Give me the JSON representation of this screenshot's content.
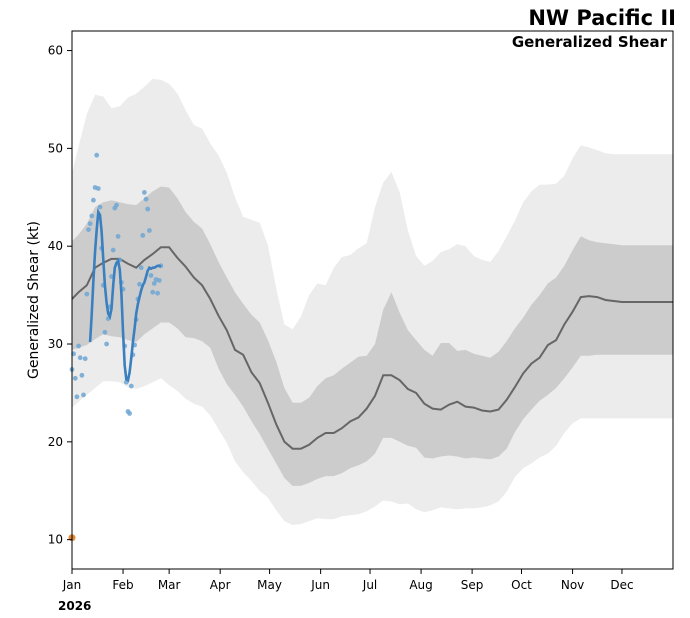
{
  "chart_data": {
    "type": "line",
    "title": "NW Pacific II",
    "subtitle": "Generalized Shear",
    "ylabel": "Generalized Shear (kt)",
    "xlabel": "",
    "year_label": "2026",
    "ylim": [
      7,
      62
    ],
    "xlim": [
      1,
      366
    ],
    "yticks": [
      10,
      20,
      30,
      40,
      50,
      60
    ],
    "xticks": [
      {
        "day": 1,
        "label": "Jan"
      },
      {
        "day": 32,
        "label": "Feb"
      },
      {
        "day": 60,
        "label": "Mar"
      },
      {
        "day": 91,
        "label": "Apr"
      },
      {
        "day": 121,
        "label": "May"
      },
      {
        "day": 152,
        "label": "Jun"
      },
      {
        "day": 182,
        "label": "Jul"
      },
      {
        "day": 213,
        "label": "Aug"
      },
      {
        "day": 244,
        "label": "Sep"
      },
      {
        "day": 274,
        "label": "Oct"
      },
      {
        "day": 305,
        "label": "Nov"
      },
      {
        "day": 335,
        "label": "Dec"
      }
    ],
    "colors": {
      "outer_band": "#ececec",
      "inner_band": "#cccccc",
      "climatology": "#666666",
      "current_line": "#3a7fbf",
      "current_points": "#6fa6d4",
      "marker": "#e08a3c"
    },
    "series": [
      {
        "name": "climatology mean",
        "x": [
          1,
          5,
          10,
          15,
          20,
          25,
          30,
          35,
          40,
          45,
          50,
          55,
          60,
          65,
          70,
          75,
          80,
          85,
          90,
          95,
          100,
          105,
          110,
          115,
          120,
          125,
          130,
          135,
          140,
          145,
          150,
          155,
          160,
          165,
          170,
          175,
          180,
          185,
          190,
          195,
          200,
          205,
          210,
          215,
          220,
          225,
          230,
          235,
          240,
          245,
          250,
          255,
          260,
          265,
          270,
          275,
          280,
          285,
          290,
          295,
          300,
          305,
          310,
          315,
          320,
          325,
          330,
          335,
          340,
          345,
          350,
          355,
          360,
          366
        ],
        "y": [
          34.6,
          35.3,
          36.0,
          37.8,
          38.3,
          38.7,
          38.7,
          38.2,
          37.8,
          38.6,
          39.2,
          39.9,
          39.9,
          38.8,
          37.9,
          36.8,
          36.0,
          34.6,
          32.9,
          31.4,
          29.4,
          28.9,
          27.1,
          26.0,
          24.0,
          21.8,
          20.0,
          19.3,
          19.3,
          19.7,
          20.4,
          20.9,
          20.9,
          21.4,
          22.1,
          22.5,
          23.4,
          24.7,
          26.8,
          26.8,
          26.3,
          25.4,
          25.0,
          23.9,
          23.4,
          23.3,
          23.8,
          24.1,
          23.6,
          23.5,
          23.2,
          23.1,
          23.3,
          24.3,
          25.6,
          27.0,
          28.0,
          28.6,
          29.9,
          30.4,
          32.0,
          33.3,
          34.8,
          34.9,
          34.8,
          34.5,
          34.4,
          34.3,
          34.3,
          34.3,
          34.3,
          34.3,
          34.3,
          34.3
        ]
      },
      {
        "name": "inner band (upper)",
        "x": [
          1,
          5,
          10,
          15,
          20,
          25,
          30,
          35,
          40,
          45,
          50,
          55,
          60,
          65,
          70,
          75,
          80,
          85,
          90,
          95,
          100,
          105,
          110,
          115,
          120,
          125,
          130,
          135,
          140,
          145,
          150,
          155,
          160,
          165,
          170,
          175,
          180,
          185,
          190,
          195,
          200,
          205,
          210,
          215,
          220,
          225,
          230,
          235,
          240,
          245,
          250,
          255,
          260,
          265,
          270,
          275,
          280,
          285,
          290,
          295,
          300,
          305,
          310,
          315,
          320,
          325,
          330,
          335,
          340,
          345,
          350,
          355,
          360,
          366
        ],
        "y": [
          40.5,
          41.2,
          42.3,
          44.0,
          44.5,
          44.7,
          44.5,
          44.3,
          44.2,
          44.9,
          45.6,
          46.1,
          46.0,
          44.9,
          43.5,
          42.5,
          41.8,
          40.2,
          38.4,
          36.8,
          35.3,
          34.1,
          33.0,
          32.2,
          30.4,
          28.2,
          25.5,
          24.0,
          24.0,
          24.5,
          25.7,
          26.5,
          26.8,
          27.5,
          28.1,
          28.7,
          28.8,
          30.0,
          33.5,
          35.3,
          33.2,
          31.4,
          30.4,
          29.4,
          28.8,
          30.1,
          30.1,
          29.3,
          29.4,
          29.0,
          28.8,
          28.6,
          29.2,
          30.3,
          31.6,
          32.7,
          34.0,
          35.0,
          36.2,
          36.8,
          38.0,
          39.6,
          41.0,
          40.6,
          40.4,
          40.3,
          40.2,
          40.1,
          40.1,
          40.1,
          40.1,
          40.1,
          40.1,
          40.1
        ]
      },
      {
        "name": "inner band (lower)",
        "x": [
          1,
          5,
          10,
          15,
          20,
          25,
          30,
          35,
          40,
          45,
          50,
          55,
          60,
          65,
          70,
          75,
          80,
          85,
          90,
          95,
          100,
          105,
          110,
          115,
          120,
          125,
          130,
          135,
          140,
          145,
          150,
          155,
          160,
          165,
          170,
          175,
          180,
          185,
          190,
          195,
          200,
          205,
          210,
          215,
          220,
          225,
          230,
          235,
          240,
          245,
          250,
          255,
          260,
          265,
          270,
          275,
          280,
          285,
          290,
          295,
          300,
          305,
          310,
          315,
          320,
          325,
          330,
          335,
          340,
          345,
          350,
          355,
          360,
          366
        ],
        "y": [
          29.4,
          29.6,
          29.9,
          30.5,
          31.0,
          30.8,
          30.7,
          30.4,
          30.2,
          31.0,
          31.6,
          32.2,
          32.2,
          31.6,
          30.7,
          30.6,
          30.3,
          29.6,
          27.5,
          25.9,
          24.8,
          23.6,
          22.1,
          20.8,
          19.3,
          17.8,
          16.3,
          15.5,
          15.5,
          15.8,
          16.2,
          16.5,
          16.5,
          16.8,
          17.3,
          17.6,
          18.0,
          18.8,
          20.4,
          20.4,
          20.0,
          19.6,
          19.4,
          18.4,
          18.3,
          18.5,
          18.6,
          18.5,
          18.3,
          18.4,
          18.3,
          18.2,
          18.5,
          19.3,
          21.0,
          22.3,
          23.3,
          24.2,
          24.8,
          25.5,
          26.5,
          27.6,
          28.8,
          28.8,
          28.9,
          28.9,
          28.9,
          28.9,
          28.9,
          28.9,
          28.9,
          28.9,
          28.9,
          28.9
        ]
      },
      {
        "name": "outer band (upper)",
        "x": [
          1,
          5,
          10,
          15,
          20,
          25,
          30,
          35,
          40,
          45,
          50,
          55,
          60,
          65,
          70,
          75,
          80,
          85,
          90,
          95,
          100,
          105,
          110,
          115,
          120,
          125,
          130,
          135,
          140,
          145,
          150,
          155,
          160,
          165,
          170,
          175,
          180,
          185,
          190,
          195,
          200,
          205,
          210,
          215,
          220,
          225,
          230,
          235,
          240,
          245,
          250,
          255,
          260,
          265,
          270,
          275,
          280,
          285,
          290,
          295,
          300,
          305,
          310,
          315,
          320,
          325,
          330,
          335,
          340,
          345,
          350,
          355,
          360,
          366
        ],
        "y": [
          47.5,
          50.2,
          53.5,
          55.5,
          55.3,
          54.1,
          54.3,
          55.2,
          55.6,
          56.3,
          57.1,
          57.0,
          56.6,
          55.6,
          53.9,
          52.4,
          52.0,
          50.5,
          49.3,
          47.5,
          45.0,
          43.0,
          42.7,
          42.4,
          40.1,
          35.7,
          32.0,
          31.5,
          32.8,
          35.0,
          36.2,
          36.0,
          37.8,
          38.9,
          39.1,
          39.8,
          40.3,
          44.0,
          46.5,
          47.6,
          45.5,
          41.6,
          39.0,
          38.0,
          38.5,
          39.4,
          39.7,
          40.2,
          40.0,
          39.0,
          38.6,
          38.4,
          39.5,
          41.0,
          42.6,
          44.5,
          45.6,
          46.3,
          46.3,
          46.4,
          47.2,
          49.0,
          50.3,
          50.1,
          49.8,
          49.5,
          49.4,
          49.4,
          49.4,
          49.4,
          49.4,
          49.4,
          49.4,
          49.4
        ]
      },
      {
        "name": "outer band (lower)",
        "x": [
          1,
          5,
          10,
          15,
          20,
          25,
          30,
          35,
          40,
          45,
          50,
          55,
          60,
          65,
          70,
          75,
          80,
          85,
          90,
          95,
          100,
          105,
          110,
          115,
          120,
          125,
          130,
          135,
          140,
          145,
          150,
          155,
          160,
          165,
          170,
          175,
          180,
          185,
          190,
          195,
          200,
          205,
          210,
          215,
          220,
          225,
          230,
          235,
          240,
          245,
          250,
          255,
          260,
          265,
          270,
          275,
          280,
          285,
          290,
          295,
          300,
          305,
          310,
          315,
          320,
          325,
          330,
          335,
          340,
          345,
          350,
          355,
          360,
          366
        ],
        "y": [
          23.5,
          24.1,
          24.8,
          25.5,
          26.2,
          26.2,
          26.1,
          25.6,
          25.4,
          25.7,
          26.1,
          26.5,
          25.8,
          25.2,
          24.4,
          23.9,
          23.6,
          22.7,
          21.3,
          19.9,
          18.0,
          16.9,
          16.0,
          15.0,
          14.3,
          13.0,
          11.9,
          11.5,
          11.6,
          11.9,
          12.2,
          12.1,
          12.1,
          12.4,
          12.5,
          12.6,
          12.9,
          13.4,
          14.0,
          13.9,
          13.6,
          13.7,
          13.1,
          12.8,
          13.0,
          13.3,
          13.2,
          13.1,
          13.2,
          13.2,
          13.3,
          13.5,
          13.9,
          14.9,
          16.4,
          17.3,
          17.8,
          18.4,
          18.8,
          19.6,
          20.9,
          21.9,
          22.4,
          22.4,
          22.4,
          22.4,
          22.4,
          22.4,
          22.4,
          22.4,
          22.4,
          22.4,
          22.4,
          22.4
        ]
      },
      {
        "name": "2026 (smoothed)",
        "x": [
          12,
          13,
          14,
          15,
          16,
          17,
          18,
          19,
          20,
          21,
          22,
          23,
          24,
          25,
          26,
          27,
          28,
          29,
          30,
          31,
          32,
          33,
          34,
          35,
          36,
          37,
          38,
          39,
          40,
          41,
          42,
          43,
          44,
          45,
          46,
          47,
          48,
          49,
          50,
          51,
          52,
          53,
          54,
          55
        ],
        "y": [
          30.2,
          33.2,
          36.5,
          39.5,
          41.7,
          43.5,
          43.2,
          41.5,
          38.6,
          36.0,
          34.2,
          33.1,
          32.8,
          33.6,
          36.0,
          37.8,
          38.3,
          38.5,
          37.6,
          35.2,
          31.3,
          27.8,
          26.4,
          26.3,
          27.1,
          28.6,
          30.2,
          31.6,
          33.1,
          34.1,
          34.8,
          35.5,
          36.0,
          36.3,
          36.9,
          37.5,
          37.8,
          37.7,
          37.8,
          37.8,
          37.9,
          38.0,
          38.0,
          37.9
        ]
      },
      {
        "name": "2026 (daily points)",
        "x": [
          1,
          2,
          3,
          4,
          5,
          6,
          7,
          8,
          9,
          10,
          11,
          12,
          13,
          14,
          15,
          16,
          17,
          18,
          19,
          20,
          21,
          22,
          23,
          24,
          25,
          26,
          27,
          28,
          29,
          30,
          31,
          32,
          33,
          34,
          35,
          36,
          37,
          38,
          39,
          40,
          41,
          42,
          43,
          44,
          45,
          46,
          47,
          48,
          49,
          50,
          51,
          52,
          53,
          54,
          55
        ],
        "y": [
          27.4,
          29.0,
          26.5,
          24.6,
          29.8,
          28.6,
          26.8,
          24.8,
          28.5,
          35.1,
          41.7,
          42.3,
          43.1,
          44.7,
          46.0,
          49.3,
          45.9,
          44.0,
          39.8,
          36.0,
          31.2,
          30.0,
          32.6,
          33.8,
          36.9,
          39.6,
          43.9,
          44.2,
          41.0,
          38.6,
          36.3,
          35.6,
          29.8,
          26.1,
          23.1,
          22.9,
          25.7,
          28.9,
          29.9,
          32.5,
          34.6,
          36.1,
          37.8,
          41.1,
          45.5,
          44.8,
          43.8,
          41.6,
          37.0,
          35.3,
          36.2,
          36.6,
          35.2,
          36.5,
          38.0
        ]
      },
      {
        "name": "marker",
        "x": [
          1
        ],
        "y": [
          10.2
        ]
      }
    ]
  }
}
